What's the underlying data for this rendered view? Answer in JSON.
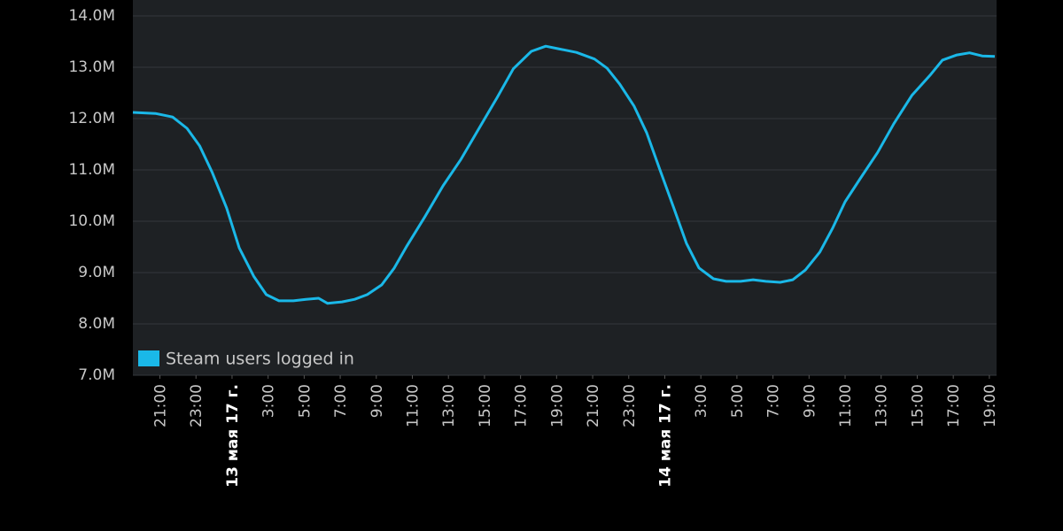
{
  "chart_data": {
    "type": "line",
    "series": [
      {
        "name": "Steam users logged in",
        "color": "#1ab8e8",
        "x": [
          19.5,
          20.75,
          21.7,
          22.5,
          23.2,
          23.9,
          24.7,
          25.4,
          26.2,
          26.9,
          27.6,
          28.4,
          29.1,
          29.8,
          30.3,
          31.1,
          31.8,
          32.5,
          33.3,
          34.0,
          34.7,
          35.7,
          36.7,
          37.7,
          38.7,
          39.7,
          40.6,
          41.6,
          42.4,
          43.1,
          44.1,
          45.1,
          45.8,
          46.5,
          47.3,
          48.0,
          48.7,
          49.5,
          50.2,
          50.9,
          51.7,
          52.4,
          53.2,
          53.9,
          54.6,
          55.4,
          56.1,
          56.8,
          57.6,
          58.3,
          59.0,
          59.8,
          60.8,
          61.7,
          62.7,
          63.7,
          64.4,
          65.2,
          65.9,
          66.6,
          67.3
        ],
        "values": [
          12.12,
          12.1,
          12.03,
          11.81,
          11.47,
          10.95,
          10.26,
          9.48,
          8.93,
          8.57,
          8.45,
          8.45,
          8.48,
          8.5,
          8.4,
          8.43,
          8.48,
          8.57,
          8.76,
          9.09,
          9.52,
          10.09,
          10.69,
          11.21,
          11.81,
          12.41,
          12.97,
          13.31,
          13.41,
          13.36,
          13.29,
          13.16,
          12.98,
          12.67,
          12.24,
          11.72,
          11.03,
          10.26,
          9.57,
          9.09,
          8.88,
          8.83,
          8.83,
          8.86,
          8.83,
          8.81,
          8.86,
          9.05,
          9.4,
          9.86,
          10.38,
          10.81,
          11.34,
          11.9,
          12.45,
          12.84,
          13.14,
          13.24,
          13.28,
          13.22,
          13.21
        ]
      }
    ],
    "xlim": [
      19.5,
      67.4
    ],
    "xticks": [
      {
        "value": 21,
        "label": "21:00"
      },
      {
        "value": 23,
        "label": "23:00"
      },
      {
        "value": 25,
        "label": "13 мая 17 г."
      },
      {
        "value": 27,
        "label": "3:00"
      },
      {
        "value": 29,
        "label": "5:00"
      },
      {
        "value": 31,
        "label": "7:00"
      },
      {
        "value": 33,
        "label": "9:00"
      },
      {
        "value": 35,
        "label": "11:00"
      },
      {
        "value": 37,
        "label": "13:00"
      },
      {
        "value": 39,
        "label": "15:00"
      },
      {
        "value": 41,
        "label": "17:00"
      },
      {
        "value": 43,
        "label": "19:00"
      },
      {
        "value": 45,
        "label": "21:00"
      },
      {
        "value": 47,
        "label": "23:00"
      },
      {
        "value": 49,
        "label": "14 мая 17 г."
      },
      {
        "value": 51,
        "label": "3:00"
      },
      {
        "value": 53,
        "label": "5:00"
      },
      {
        "value": 55,
        "label": "7:00"
      },
      {
        "value": 57,
        "label": "9:00"
      },
      {
        "value": 59,
        "label": "11:00"
      },
      {
        "value": 61,
        "label": "13:00"
      },
      {
        "value": 63,
        "label": "15:00"
      },
      {
        "value": 65,
        "label": "17:00"
      },
      {
        "value": 67,
        "label": "19:00"
      }
    ],
    "ylim": [
      7,
      14.31
    ],
    "yticks": [
      {
        "value": 7,
        "label": "7.0M"
      },
      {
        "value": 8,
        "label": "8.0M"
      },
      {
        "value": 9,
        "label": "9.0M"
      },
      {
        "value": 10,
        "label": "10.0M"
      },
      {
        "value": 11,
        "label": "11.0M"
      },
      {
        "value": 12,
        "label": "12.0M"
      },
      {
        "value": 13,
        "label": "13.0M"
      },
      {
        "value": 14,
        "label": "14.0M"
      }
    ],
    "grid": true,
    "legend": "bottom-left"
  }
}
